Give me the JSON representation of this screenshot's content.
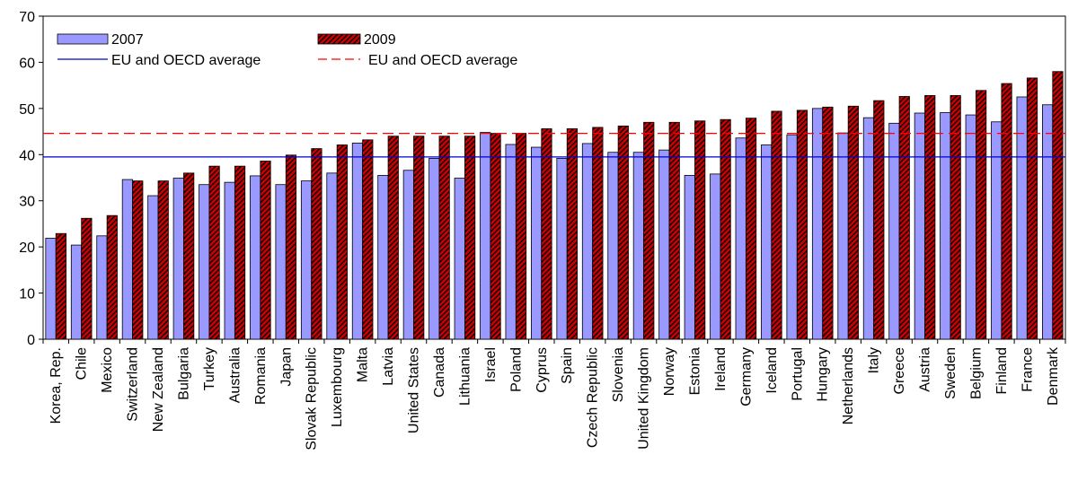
{
  "chart_data": {
    "type": "bar",
    "title": "",
    "xlabel": "",
    "ylabel": "",
    "ylim": [
      0,
      70
    ],
    "yticks": [
      0,
      10,
      20,
      30,
      40,
      50,
      60,
      70
    ],
    "grid": false,
    "legend_position": "top-left",
    "categories": [
      "Korea, Rep.",
      "Chile",
      "Mexico",
      "Switzerland",
      "New Zealand",
      "Bulgaria",
      "Turkey",
      "Australia",
      "Romania",
      "Japan",
      "Slovak Republic",
      "Luxembourg",
      "Malta",
      "Latvia",
      "United States",
      "Canada",
      "Lithuania",
      "Israel",
      "Poland",
      "Cyprus",
      "Spain",
      "Czech Republic",
      "Slovenia",
      "United Kingdom",
      "Norway",
      "Estonia",
      "Ireland",
      "Germany",
      "Iceland",
      "Portugal",
      "Hungary",
      "Netherlands",
      "Italy",
      "Greece",
      "Austria",
      "Sweden",
      "Belgium",
      "Finland",
      "France",
      "Denmark"
    ],
    "series": [
      {
        "name": "2007",
        "color": "#9999ff",
        "values": [
          21.9,
          20.4,
          22.4,
          34.6,
          31.1,
          34.9,
          33.5,
          34.0,
          35.4,
          33.5,
          34.3,
          36.0,
          42.5,
          35.5,
          36.6,
          39.2,
          34.9,
          44.8,
          42.2,
          41.6,
          39.2,
          42.4,
          40.5,
          40.5,
          41.0,
          35.5,
          35.8,
          43.6,
          42.1,
          44.3,
          50.0,
          44.7,
          48.0,
          46.8,
          49.0,
          49.1,
          48.6,
          47.1,
          52.5,
          50.8
        ]
      },
      {
        "name": "2009",
        "color": "#cc0000",
        "values": [
          22.9,
          26.2,
          26.8,
          34.3,
          34.3,
          36.0,
          37.5,
          37.5,
          38.6,
          39.9,
          41.3,
          42.1,
          43.2,
          44.0,
          44.0,
          44.0,
          44.0,
          44.6,
          44.6,
          45.6,
          45.6,
          45.9,
          46.2,
          47.0,
          47.0,
          47.3,
          47.6,
          47.9,
          49.4,
          49.6,
          50.3,
          50.5,
          51.7,
          52.6,
          52.8,
          52.8,
          53.9,
          55.4,
          56.6,
          58.0
        ]
      }
    ],
    "reference_lines": [
      {
        "name": "EU and OECD average",
        "series": "2007",
        "value": 39.5,
        "style": "solid",
        "color": "#0000cc"
      },
      {
        "name": "EU and OECD average",
        "series": "2009",
        "value": 44.6,
        "style": "dashed",
        "color": "#ff0000"
      }
    ]
  }
}
